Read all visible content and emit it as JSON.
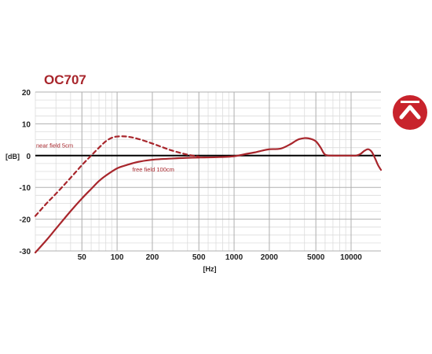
{
  "title": "OC707",
  "logo_icon": "austrian-audio-logo-icon",
  "colors": {
    "accent": "#a8262c",
    "curve": "#a8262c",
    "zero_line": "#000000",
    "grid_major": "#b0b0b0",
    "grid_minor": "#dcdcdc"
  },
  "chart_data": {
    "type": "line",
    "title": "OC707",
    "xlabel": "[Hz]",
    "ylabel": "[dB]",
    "x_scale": "log",
    "xlim": [
      20,
      18000
    ],
    "ylim": [
      -30,
      20
    ],
    "x_ticks": [
      50,
      100,
      200,
      500,
      1000,
      2000,
      5000,
      10000
    ],
    "x_tick_labels": [
      "50",
      "100",
      "200",
      "500",
      "1000",
      "2000",
      "5000",
      "10000"
    ],
    "y_ticks": [
      20,
      10,
      0,
      -10,
      -20,
      -30
    ],
    "y_tick_labels": [
      "20",
      "10",
      "0",
      "-10",
      "-20",
      "-30"
    ],
    "grid": true,
    "annotations": [
      {
        "text": "near field 5cm",
        "series": "near"
      },
      {
        "text": "free field 100cm",
        "series": "free"
      }
    ],
    "series": [
      {
        "name": "near field 5cm",
        "style": "dashed",
        "x": [
          20,
          25,
          30,
          40,
          50,
          60,
          70,
          80,
          90,
          100,
          120,
          150,
          200,
          250,
          300,
          400,
          500
        ],
        "y": [
          -19,
          -15,
          -12,
          -7,
          -3,
          0,
          2.5,
          4.5,
          5.6,
          6.0,
          6.0,
          5.3,
          3.8,
          2.5,
          1.5,
          0.3,
          -0.3
        ]
      },
      {
        "name": "free field 100cm",
        "style": "solid",
        "x": [
          20,
          25,
          30,
          40,
          50,
          60,
          70,
          80,
          100,
          120,
          150,
          200,
          300,
          400,
          500,
          700,
          1000,
          1300,
          1500,
          1800,
          2000,
          2500,
          3000,
          3500,
          4000,
          4500,
          5000,
          5500,
          6000,
          7000,
          8000,
          9000,
          10000,
          11000,
          12000,
          13000,
          14000,
          15000,
          16000,
          17000,
          18000
        ],
        "y": [
          -30.5,
          -26.5,
          -23,
          -17.5,
          -13.5,
          -10.5,
          -8,
          -6.3,
          -4,
          -3,
          -2,
          -1.3,
          -0.9,
          -0.7,
          -0.6,
          -0.5,
          -0.2,
          0.6,
          1.0,
          1.7,
          2.0,
          2.2,
          3.5,
          5.0,
          5.5,
          5.3,
          4.5,
          2.5,
          0.3,
          0.0,
          0.0,
          0.0,
          0.0,
          0.0,
          0.5,
          1.5,
          2.0,
          1.2,
          -0.8,
          -3.0,
          -4.5
        ]
      }
    ]
  }
}
